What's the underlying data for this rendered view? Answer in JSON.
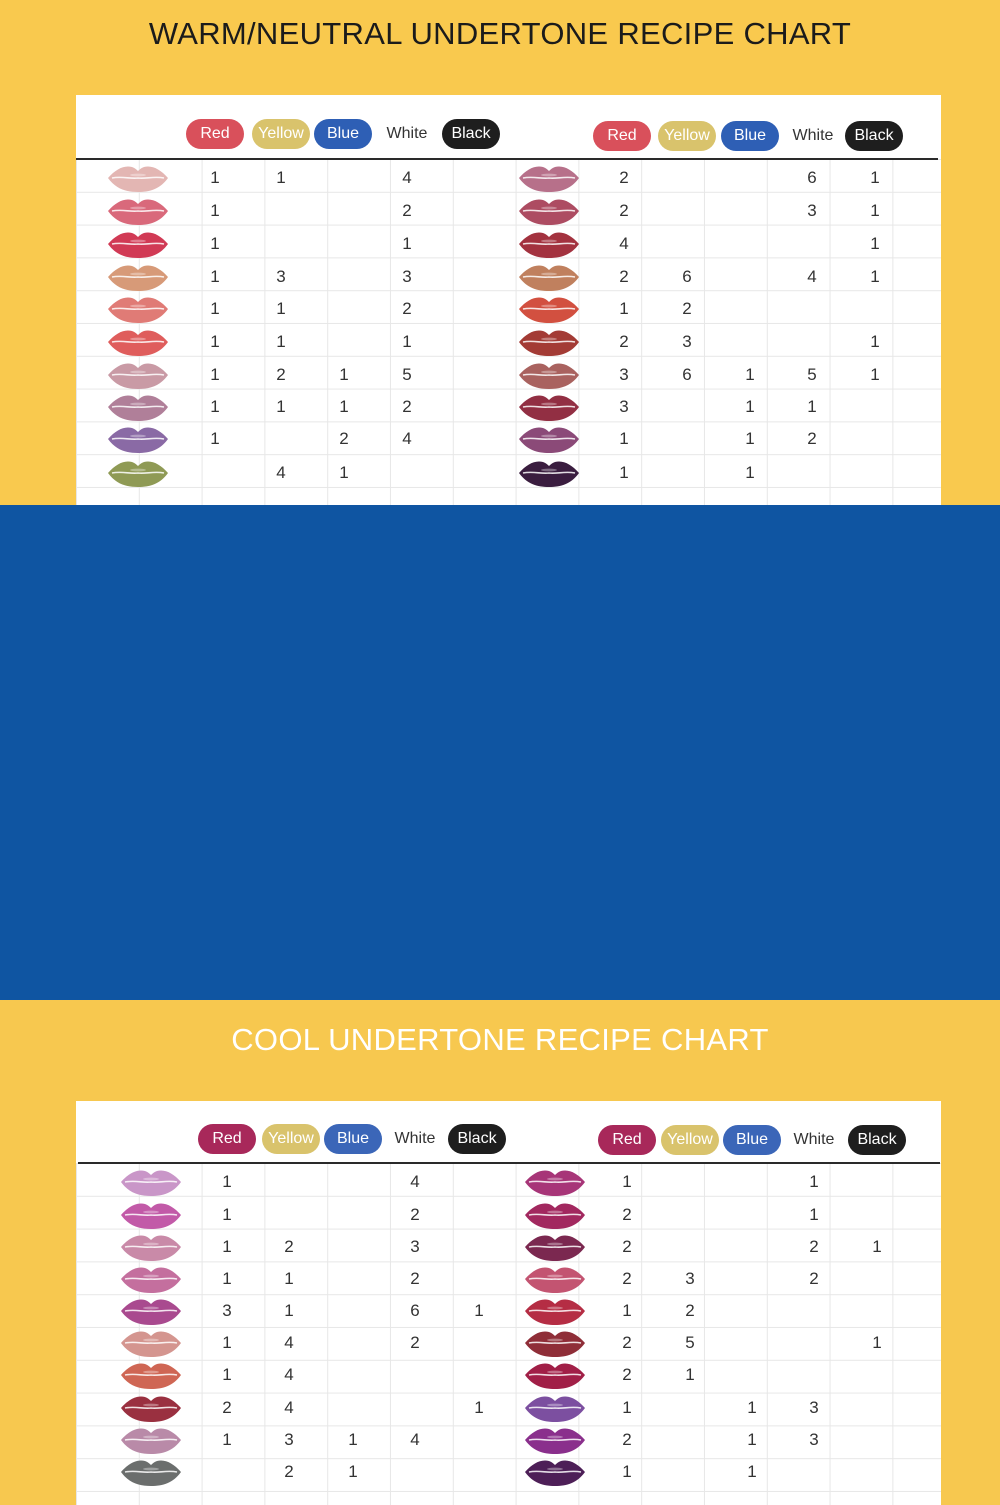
{
  "warm": {
    "title": "WARM/NEUTRAL UNDERTONE RECIPE CHART",
    "headers": [
      {
        "label": "Red",
        "color": "#d9505b",
        "text": "#ffffff"
      },
      {
        "label": "Yellow",
        "color": "#d9c36c",
        "text": "#ffffff"
      },
      {
        "label": "Blue",
        "color": "#2e5fb5",
        "text": "#ffffff"
      },
      {
        "label": "White",
        "color": "",
        "text": "#333333"
      },
      {
        "label": "Black",
        "color": "#1e1e1e",
        "text": "#ffffff"
      }
    ],
    "left": [
      {
        "lip": "#e3b6b3",
        "v": [
          "1",
          "1",
          "",
          "4",
          ""
        ]
      },
      {
        "lip": "#d9697b",
        "v": [
          "1",
          "",
          "",
          "2",
          ""
        ]
      },
      {
        "lip": "#d13a55",
        "v": [
          "1",
          "",
          "",
          "1",
          ""
        ]
      },
      {
        "lip": "#d79a78",
        "v": [
          "1",
          "3",
          "",
          "3",
          ""
        ]
      },
      {
        "lip": "#e07b76",
        "v": [
          "1",
          "1",
          "",
          "2",
          ""
        ]
      },
      {
        "lip": "#df5d5c",
        "v": [
          "1",
          "1",
          "",
          "1",
          ""
        ]
      },
      {
        "lip": "#c99aa5",
        "v": [
          "1",
          "2",
          "1",
          "5",
          ""
        ]
      },
      {
        "lip": "#b07f99",
        "v": [
          "1",
          "1",
          "1",
          "2",
          ""
        ]
      },
      {
        "lip": "#8a6aa5",
        "v": [
          "1",
          "",
          "2",
          "4",
          ""
        ]
      },
      {
        "lip": "#8f9a55",
        "v": [
          "",
          "4",
          "1",
          "",
          ""
        ]
      }
    ],
    "right": [
      {
        "lip": "#b7708a",
        "v": [
          "2",
          "",
          "",
          "6",
          "1"
        ]
      },
      {
        "lip": "#ad4c62",
        "v": [
          "2",
          "",
          "",
          "3",
          "1"
        ]
      },
      {
        "lip": "#a3323f",
        "v": [
          "4",
          "",
          "",
          "",
          "1"
        ]
      },
      {
        "lip": "#c0805e",
        "v": [
          "2",
          "6",
          "",
          "4",
          "1"
        ]
      },
      {
        "lip": "#d25040",
        "v": [
          "1",
          "2",
          "",
          "",
          ""
        ]
      },
      {
        "lip": "#a33b35",
        "v": [
          "2",
          "3",
          "",
          "",
          "1"
        ]
      },
      {
        "lip": "#a9625f",
        "v": [
          "3",
          "6",
          "1",
          "5",
          "1"
        ]
      },
      {
        "lip": "#922f43",
        "v": [
          "3",
          "",
          "1",
          "1",
          ""
        ]
      },
      {
        "lip": "#8b4a78",
        "v": [
          "1",
          "",
          "1",
          "2",
          ""
        ]
      },
      {
        "lip": "#3a1d3f",
        "v": [
          "1",
          "",
          "1",
          "",
          ""
        ]
      }
    ]
  },
  "cool": {
    "title": "COOL UNDERTONE RECIPE CHART",
    "headers": [
      {
        "label": "Red",
        "color": "#a8285a",
        "text": "#ffffff"
      },
      {
        "label": "Yellow",
        "color": "#d9c36c",
        "text": "#ffffff"
      },
      {
        "label": "Blue",
        "color": "#3b66b8",
        "text": "#ffffff"
      },
      {
        "label": "White",
        "color": "",
        "text": "#333333"
      },
      {
        "label": "Black",
        "color": "#1e1e1e",
        "text": "#ffffff"
      }
    ],
    "left": [
      {
        "lip": "#c996c8",
        "v": [
          "1",
          "",
          "",
          "4",
          ""
        ]
      },
      {
        "lip": "#c25aa8",
        "v": [
          "1",
          "",
          "",
          "2",
          ""
        ]
      },
      {
        "lip": "#c98aa8",
        "v": [
          "1",
          "2",
          "",
          "3",
          ""
        ]
      },
      {
        "lip": "#c46f9e",
        "v": [
          "1",
          "1",
          "",
          "2",
          ""
        ]
      },
      {
        "lip": "#a94a8f",
        "v": [
          "3",
          "1",
          "",
          "6",
          "1"
        ]
      },
      {
        "lip": "#d4958f",
        "v": [
          "1",
          "4",
          "",
          "2",
          ""
        ]
      },
      {
        "lip": "#cf6654",
        "v": [
          "1",
          "4",
          "",
          "",
          ""
        ]
      },
      {
        "lip": "#9a3040",
        "v": [
          "2",
          "4",
          "",
          "",
          "1"
        ]
      },
      {
        "lip": "#b98aa8",
        "v": [
          "1",
          "3",
          "1",
          "4",
          ""
        ]
      },
      {
        "lip": "#6b6e6d",
        "v": [
          "",
          "2",
          "1",
          "",
          ""
        ]
      }
    ],
    "right": [
      {
        "lip": "#a73578",
        "v": [
          "1",
          "",
          "",
          "1",
          ""
        ]
      },
      {
        "lip": "#a2285f",
        "v": [
          "2",
          "",
          "",
          "1",
          ""
        ]
      },
      {
        "lip": "#7b2850",
        "v": [
          "2",
          "",
          "",
          "2",
          "1"
        ]
      },
      {
        "lip": "#c35471",
        "v": [
          "2",
          "3",
          "",
          "2",
          ""
        ]
      },
      {
        "lip": "#b52d44",
        "v": [
          "1",
          "2",
          "",
          "",
          ""
        ]
      },
      {
        "lip": "#8f2e38",
        "v": [
          "2",
          "5",
          "",
          "",
          "1"
        ]
      },
      {
        "lip": "#a11f47",
        "v": [
          "2",
          "1",
          "",
          "",
          ""
        ]
      },
      {
        "lip": "#7c4fa0",
        "v": [
          "1",
          "",
          "1",
          "3",
          ""
        ]
      },
      {
        "lip": "#8a2f8c",
        "v": [
          "2",
          "",
          "1",
          "3",
          ""
        ]
      },
      {
        "lip": "#4d1f57",
        "v": [
          "1",
          "",
          "1",
          "",
          ""
        ]
      }
    ]
  }
}
